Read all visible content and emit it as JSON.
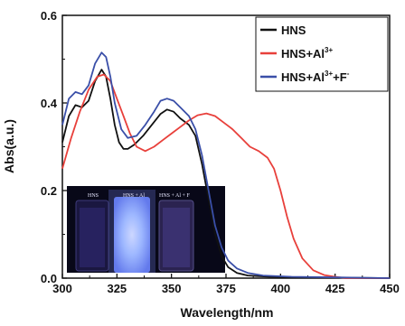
{
  "chart_data": {
    "type": "line",
    "xlabel": "Wavelength/nm",
    "ylabel": "Abs(a.u.)",
    "xlim": [
      300,
      450
    ],
    "ylim": [
      0.0,
      0.6
    ],
    "x_ticks": [
      300,
      325,
      350,
      375,
      400,
      425,
      450
    ],
    "x_tick_labels": [
      "300",
      "325",
      "350",
      "375",
      "400",
      "425",
      "450"
    ],
    "y_ticks": [
      0.0,
      0.2,
      0.4,
      0.6
    ],
    "y_tick_labels": [
      "0.0",
      "0.2",
      "0.4",
      "0.6"
    ],
    "grid": false,
    "legend_position": "top-right",
    "series": [
      {
        "name": "HNS",
        "legend_base": "HNS",
        "legend_sup1": "",
        "legend_mid": "",
        "legend_sup2": "",
        "color": "#111111",
        "points": [
          [
            300,
            0.31
          ],
          [
            303,
            0.37
          ],
          [
            306,
            0.395
          ],
          [
            309,
            0.39
          ],
          [
            312,
            0.405
          ],
          [
            315,
            0.45
          ],
          [
            318,
            0.476
          ],
          [
            320,
            0.46
          ],
          [
            322,
            0.41
          ],
          [
            324,
            0.35
          ],
          [
            326,
            0.31
          ],
          [
            328,
            0.295
          ],
          [
            330,
            0.295
          ],
          [
            333,
            0.305
          ],
          [
            337,
            0.325
          ],
          [
            341,
            0.35
          ],
          [
            345,
            0.375
          ],
          [
            348,
            0.385
          ],
          [
            351,
            0.38
          ],
          [
            354,
            0.365
          ],
          [
            358,
            0.35
          ],
          [
            361,
            0.325
          ],
          [
            364,
            0.26
          ],
          [
            367,
            0.18
          ],
          [
            370,
            0.1
          ],
          [
            373,
            0.05
          ],
          [
            376,
            0.025
          ],
          [
            380,
            0.012
          ],
          [
            385,
            0.006
          ],
          [
            395,
            0.003
          ],
          [
            410,
            0.002
          ],
          [
            450,
            0.0
          ]
        ]
      },
      {
        "name": "HNS+Al3+",
        "legend_base": "HNS+Al",
        "legend_sup1": "3+",
        "legend_mid": "",
        "legend_sup2": "",
        "color": "#e8403b",
        "points": [
          [
            300,
            0.25
          ],
          [
            304,
            0.32
          ],
          [
            308,
            0.38
          ],
          [
            312,
            0.43
          ],
          [
            316,
            0.46
          ],
          [
            319,
            0.465
          ],
          [
            322,
            0.45
          ],
          [
            325,
            0.41
          ],
          [
            328,
            0.37
          ],
          [
            331,
            0.33
          ],
          [
            334,
            0.3
          ],
          [
            338,
            0.29
          ],
          [
            342,
            0.3
          ],
          [
            346,
            0.315
          ],
          [
            350,
            0.33
          ],
          [
            354,
            0.345
          ],
          [
            358,
            0.36
          ],
          [
            362,
            0.372
          ],
          [
            366,
            0.376
          ],
          [
            370,
            0.37
          ],
          [
            374,
            0.355
          ],
          [
            378,
            0.34
          ],
          [
            382,
            0.32
          ],
          [
            386,
            0.3
          ],
          [
            390,
            0.29
          ],
          [
            394,
            0.275
          ],
          [
            397,
            0.25
          ],
          [
            400,
            0.2
          ],
          [
            403,
            0.14
          ],
          [
            406,
            0.09
          ],
          [
            410,
            0.045
          ],
          [
            415,
            0.018
          ],
          [
            420,
            0.007
          ],
          [
            425,
            0.003
          ],
          [
            430,
            0.0
          ],
          [
            450,
            0.0
          ]
        ]
      },
      {
        "name": "HNS+Al3++F-",
        "legend_base": "HNS+Al",
        "legend_sup1": "3+",
        "legend_mid": "+F",
        "legend_sup2": "-",
        "color": "#3a4fa8",
        "points": [
          [
            300,
            0.35
          ],
          [
            303,
            0.41
          ],
          [
            306,
            0.425
          ],
          [
            309,
            0.42
          ],
          [
            312,
            0.44
          ],
          [
            315,
            0.49
          ],
          [
            318,
            0.515
          ],
          [
            320,
            0.505
          ],
          [
            322,
            0.46
          ],
          [
            324,
            0.4
          ],
          [
            327,
            0.34
          ],
          [
            330,
            0.32
          ],
          [
            334,
            0.325
          ],
          [
            338,
            0.35
          ],
          [
            342,
            0.38
          ],
          [
            345,
            0.405
          ],
          [
            348,
            0.41
          ],
          [
            351,
            0.405
          ],
          [
            354,
            0.39
          ],
          [
            358,
            0.37
          ],
          [
            361,
            0.34
          ],
          [
            364,
            0.28
          ],
          [
            367,
            0.2
          ],
          [
            370,
            0.12
          ],
          [
            373,
            0.07
          ],
          [
            376,
            0.04
          ],
          [
            380,
            0.022
          ],
          [
            385,
            0.012
          ],
          [
            392,
            0.006
          ],
          [
            405,
            0.003
          ],
          [
            450,
            0.0
          ]
        ]
      }
    ],
    "inset_photo": {
      "labels": [
        "HNS",
        "HNS + Al",
        "HNS + Al  + F"
      ]
    }
  }
}
